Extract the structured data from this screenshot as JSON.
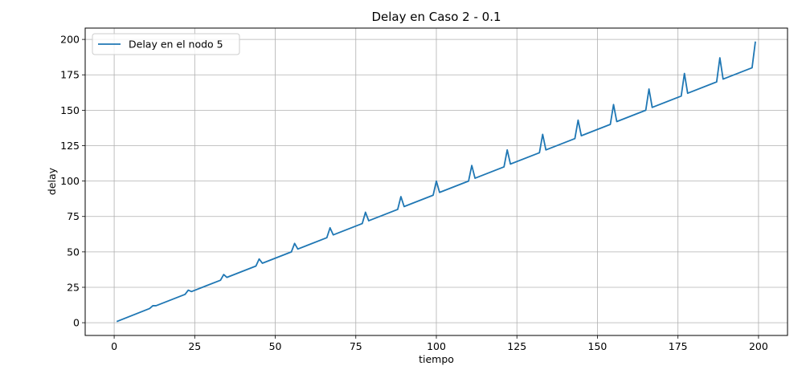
{
  "chart_data": {
    "type": "line",
    "title": "Delay en Caso 2 - 0.1",
    "xlabel": "tiempo",
    "ylabel": "delay",
    "xlim": [
      -9,
      209
    ],
    "ylim": [
      -9,
      208
    ],
    "xticks": [
      0,
      25,
      50,
      75,
      100,
      125,
      150,
      175,
      200
    ],
    "yticks": [
      0,
      25,
      50,
      75,
      100,
      125,
      150,
      175,
      200
    ],
    "grid": true,
    "legend_position": "top-left",
    "series": [
      {
        "name": "Delay en el nodo 5",
        "color": "#1f77b4",
        "points": [
          [
            1,
            1
          ],
          [
            11,
            10
          ],
          [
            12,
            12
          ],
          [
            13,
            12
          ],
          [
            22,
            20
          ],
          [
            23,
            23
          ],
          [
            24,
            22
          ],
          [
            33,
            30
          ],
          [
            34,
            34
          ],
          [
            35,
            32
          ],
          [
            44,
            40
          ],
          [
            45,
            45
          ],
          [
            46,
            42
          ],
          [
            55,
            50
          ],
          [
            56,
            56
          ],
          [
            57,
            52
          ],
          [
            66,
            60
          ],
          [
            67,
            67
          ],
          [
            68,
            62
          ],
          [
            77,
            70
          ],
          [
            78,
            78
          ],
          [
            79,
            72
          ],
          [
            88,
            80
          ],
          [
            89,
            89
          ],
          [
            90,
            82
          ],
          [
            99,
            90
          ],
          [
            100,
            100
          ],
          [
            101,
            92
          ],
          [
            110,
            100
          ],
          [
            111,
            111
          ],
          [
            112,
            102
          ],
          [
            121,
            110
          ],
          [
            122,
            122
          ],
          [
            123,
            112
          ],
          [
            132,
            120
          ],
          [
            133,
            133
          ],
          [
            134,
            122
          ],
          [
            143,
            130
          ],
          [
            144,
            143
          ],
          [
            145,
            132
          ],
          [
            154,
            140
          ],
          [
            155,
            154
          ],
          [
            156,
            142
          ],
          [
            165,
            150
          ],
          [
            166,
            165
          ],
          [
            167,
            152
          ],
          [
            176,
            160
          ],
          [
            177,
            176
          ],
          [
            178,
            162
          ],
          [
            187,
            170
          ],
          [
            188,
            187
          ],
          [
            189,
            172
          ],
          [
            198,
            180
          ],
          [
            199,
            198
          ]
        ]
      }
    ]
  }
}
